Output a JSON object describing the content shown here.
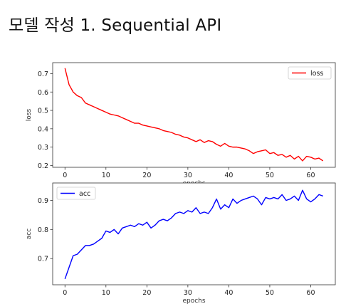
{
  "page_title": "모델 작성 1. Sequential API",
  "chart_data": [
    {
      "type": "line",
      "xlabel": "epochs",
      "ylabel": "loss",
      "xlim": [
        -3,
        66
      ],
      "ylim": [
        0.19,
        0.76
      ],
      "xticks": [
        0,
        10,
        20,
        30,
        40,
        50,
        60
      ],
      "yticks": [
        0.2,
        0.3,
        0.4,
        0.5,
        0.6,
        0.7
      ],
      "ytick_labels": [
        "0.2",
        "0.3",
        "0.4",
        "0.5",
        "0.6",
        "0.7"
      ],
      "legend_position": "top-right",
      "grid": false,
      "series": [
        {
          "name": "loss",
          "color": "#ff0000",
          "x": [
            0,
            1,
            2,
            3,
            4,
            5,
            6,
            7,
            8,
            9,
            10,
            11,
            12,
            13,
            14,
            15,
            16,
            17,
            18,
            19,
            20,
            21,
            22,
            23,
            24,
            25,
            26,
            27,
            28,
            29,
            30,
            31,
            32,
            33,
            34,
            35,
            36,
            37,
            38,
            39,
            40,
            41,
            42,
            43,
            44,
            45,
            46,
            47,
            48,
            49,
            50,
            51,
            52,
            53,
            54,
            55,
            56,
            57,
            58,
            59,
            60,
            61,
            62,
            63
          ],
          "values": [
            0.73,
            0.64,
            0.6,
            0.58,
            0.57,
            0.54,
            0.53,
            0.52,
            0.51,
            0.5,
            0.49,
            0.48,
            0.475,
            0.47,
            0.46,
            0.45,
            0.44,
            0.43,
            0.43,
            0.42,
            0.415,
            0.41,
            0.405,
            0.4,
            0.39,
            0.385,
            0.38,
            0.37,
            0.365,
            0.355,
            0.35,
            0.34,
            0.33,
            0.34,
            0.325,
            0.335,
            0.33,
            0.315,
            0.305,
            0.32,
            0.305,
            0.3,
            0.3,
            0.295,
            0.29,
            0.28,
            0.265,
            0.275,
            0.28,
            0.285,
            0.265,
            0.27,
            0.255,
            0.26,
            0.245,
            0.255,
            0.235,
            0.25,
            0.225,
            0.25,
            0.245,
            0.235,
            0.24,
            0.225
          ]
        }
      ]
    },
    {
      "type": "line",
      "xlabel": "epochs",
      "ylabel": "acc",
      "xlim": [
        -3,
        66
      ],
      "ylim": [
        0.61,
        0.96
      ],
      "xticks": [
        0,
        10,
        20,
        30,
        40,
        50,
        60
      ],
      "yticks": [
        0.7,
        0.8,
        0.9
      ],
      "ytick_labels": [
        "0.7",
        "0.8",
        "0.9"
      ],
      "legend_position": "top-left",
      "grid": false,
      "series": [
        {
          "name": "acc",
          "color": "#0000ff",
          "x": [
            0,
            1,
            2,
            3,
            4,
            5,
            6,
            7,
            8,
            9,
            10,
            11,
            12,
            13,
            14,
            15,
            16,
            17,
            18,
            19,
            20,
            21,
            22,
            23,
            24,
            25,
            26,
            27,
            28,
            29,
            30,
            31,
            32,
            33,
            34,
            35,
            36,
            37,
            38,
            39,
            40,
            41,
            42,
            43,
            44,
            45,
            46,
            47,
            48,
            49,
            50,
            51,
            52,
            53,
            54,
            55,
            56,
            57,
            58,
            59,
            60,
            61,
            62,
            63
          ],
          "values": [
            0.63,
            0.67,
            0.71,
            0.715,
            0.73,
            0.745,
            0.745,
            0.75,
            0.76,
            0.77,
            0.795,
            0.79,
            0.8,
            0.785,
            0.805,
            0.81,
            0.815,
            0.81,
            0.82,
            0.815,
            0.825,
            0.805,
            0.815,
            0.83,
            0.835,
            0.83,
            0.84,
            0.855,
            0.86,
            0.855,
            0.865,
            0.86,
            0.875,
            0.855,
            0.86,
            0.855,
            0.875,
            0.905,
            0.87,
            0.885,
            0.875,
            0.905,
            0.89,
            0.9,
            0.905,
            0.91,
            0.915,
            0.905,
            0.885,
            0.91,
            0.905,
            0.91,
            0.905,
            0.92,
            0.9,
            0.905,
            0.915,
            0.9,
            0.935,
            0.905,
            0.895,
            0.905,
            0.92,
            0.915
          ]
        }
      ]
    }
  ]
}
